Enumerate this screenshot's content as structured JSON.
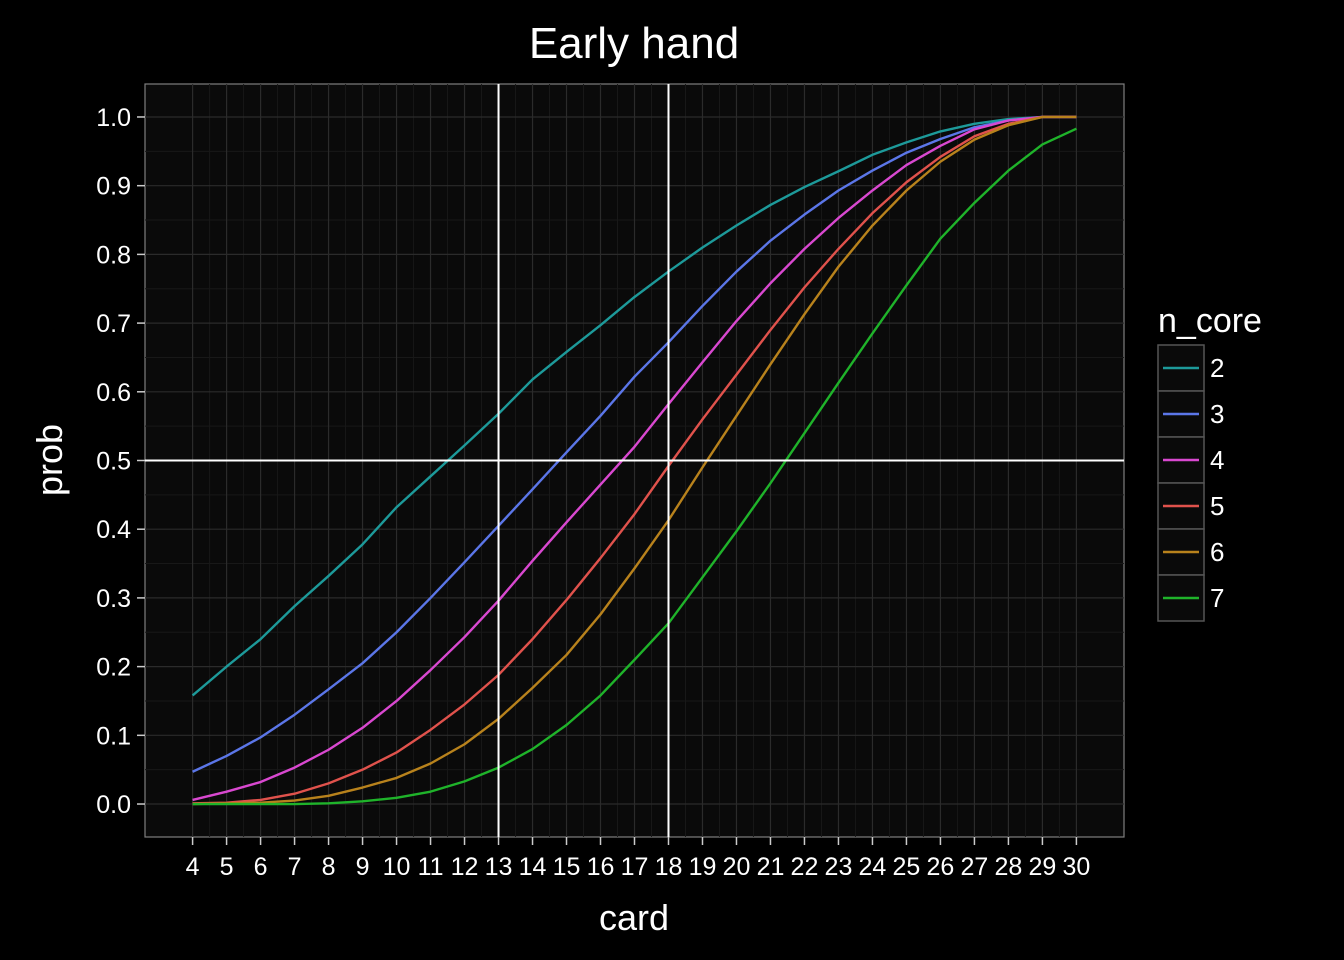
{
  "chart_data": {
    "type": "line",
    "title": "Early hand",
    "xlabel": "card",
    "ylabel": "prob",
    "x": [
      4,
      5,
      6,
      7,
      8,
      9,
      10,
      11,
      12,
      13,
      14,
      15,
      16,
      17,
      18,
      19,
      20,
      21,
      22,
      23,
      24,
      25,
      26,
      27,
      28,
      29,
      30
    ],
    "xlim": [
      2.6,
      31.4
    ],
    "ylim": [
      -0.048,
      1.048
    ],
    "yticks": [
      0.0,
      0.1,
      0.2,
      0.3,
      0.4,
      0.5,
      0.6,
      0.7,
      0.8,
      0.9,
      1.0
    ],
    "ytick_labels": [
      "0.0",
      "0.1",
      "0.2",
      "0.3",
      "0.4",
      "0.5",
      "0.6",
      "0.7",
      "0.8",
      "0.9",
      "1.0"
    ],
    "xticks": [
      4,
      5,
      6,
      7,
      8,
      9,
      10,
      11,
      12,
      13,
      14,
      15,
      16,
      17,
      18,
      19,
      20,
      21,
      22,
      23,
      24,
      25,
      26,
      27,
      28,
      29,
      30
    ],
    "xtick_labels": [
      "4",
      "5",
      "6",
      "7",
      "8",
      "9",
      "10",
      "11",
      "12",
      "13",
      "14",
      "15",
      "16",
      "17",
      "18",
      "19",
      "20",
      "21",
      "22",
      "23",
      "24",
      "25",
      "26",
      "27",
      "28",
      "29",
      "30"
    ],
    "reference_lines": {
      "vertical": [
        13,
        18
      ],
      "horizontal": [
        0.5
      ]
    },
    "grid": true,
    "legend": {
      "title": "n_core",
      "position": "right"
    },
    "series": [
      {
        "name": "2",
        "color": "#1d9a9a",
        "values": [
          0.158,
          0.2,
          0.24,
          0.288,
          0.332,
          0.378,
          0.432,
          0.477,
          0.522,
          0.568,
          0.618,
          0.658,
          0.697,
          0.738,
          0.775,
          0.81,
          0.842,
          0.872,
          0.898,
          0.921,
          0.945,
          0.963,
          0.979,
          0.99,
          0.997,
          1.0,
          1.0
        ]
      },
      {
        "name": "3",
        "color": "#5b76e8",
        "values": [
          0.047,
          0.07,
          0.097,
          0.13,
          0.167,
          0.205,
          0.25,
          0.3,
          0.352,
          0.405,
          0.458,
          0.512,
          0.565,
          0.622,
          0.672,
          0.725,
          0.775,
          0.82,
          0.858,
          0.893,
          0.922,
          0.948,
          0.968,
          0.985,
          0.995,
          1.0,
          1.0
        ]
      },
      {
        "name": "4",
        "color": "#d948d0",
        "values": [
          0.006,
          0.018,
          0.032,
          0.053,
          0.079,
          0.111,
          0.15,
          0.195,
          0.243,
          0.296,
          0.354,
          0.41,
          0.465,
          0.52,
          0.582,
          0.643,
          0.703,
          0.758,
          0.808,
          0.853,
          0.893,
          0.93,
          0.958,
          0.982,
          0.995,
          1.0,
          1.0
        ]
      },
      {
        "name": "5",
        "color": "#e0524c",
        "values": [
          0.001,
          0.002,
          0.006,
          0.015,
          0.03,
          0.05,
          0.075,
          0.108,
          0.145,
          0.188,
          0.24,
          0.297,
          0.358,
          0.422,
          0.492,
          0.56,
          0.625,
          0.69,
          0.752,
          0.808,
          0.86,
          0.905,
          0.942,
          0.972,
          0.99,
          1.0,
          1.0
        ]
      },
      {
        "name": "6",
        "color": "#b8821c",
        "values": [
          0.0,
          0.001,
          0.002,
          0.005,
          0.012,
          0.024,
          0.038,
          0.059,
          0.087,
          0.124,
          0.169,
          0.217,
          0.276,
          0.343,
          0.413,
          0.49,
          0.565,
          0.64,
          0.713,
          0.782,
          0.842,
          0.893,
          0.935,
          0.967,
          0.988,
          1.0,
          1.0
        ]
      },
      {
        "name": "7",
        "color": "#1fb32a",
        "values": [
          0.0,
          0.0,
          0.0,
          0.0,
          0.001,
          0.004,
          0.009,
          0.018,
          0.033,
          0.053,
          0.08,
          0.115,
          0.158,
          0.21,
          0.263,
          0.33,
          0.397,
          0.467,
          0.54,
          0.613,
          0.685,
          0.755,
          0.823,
          0.875,
          0.922,
          0.96,
          0.983
        ]
      }
    ]
  }
}
